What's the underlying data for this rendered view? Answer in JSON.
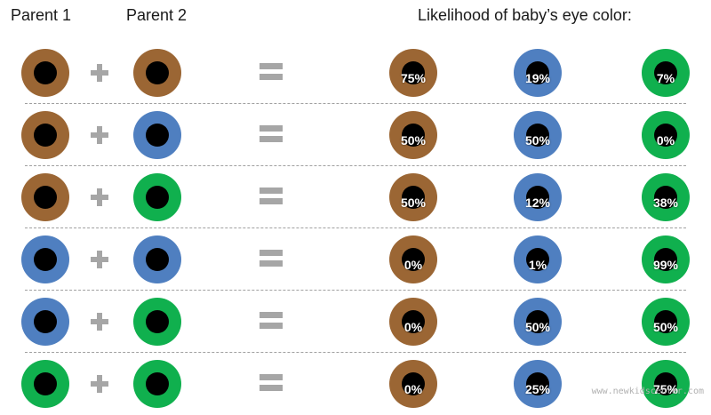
{
  "headers": {
    "parent1": "Parent 1",
    "parent2": "Parent 2",
    "likelihood": "Likelihood of baby’s eye color:"
  },
  "colors": {
    "brown": "#9b6634",
    "blue": "#4f7fc0",
    "green": "#10b04e",
    "operator": "#a6a6a6",
    "divider": "#a0a0a0"
  },
  "outcome_order": [
    "brown",
    "blue",
    "green"
  ],
  "rows": [
    {
      "parent1": "brown",
      "parent2": "brown",
      "outcomes": {
        "brown": "75%",
        "blue": "19%",
        "green": "7%"
      }
    },
    {
      "parent1": "brown",
      "parent2": "blue",
      "outcomes": {
        "brown": "50%",
        "blue": "50%",
        "green": "0%"
      }
    },
    {
      "parent1": "brown",
      "parent2": "green",
      "outcomes": {
        "brown": "50%",
        "blue": "12%",
        "green": "38%"
      }
    },
    {
      "parent1": "blue",
      "parent2": "blue",
      "outcomes": {
        "brown": "0%",
        "blue": "1%",
        "green": "99%"
      }
    },
    {
      "parent1": "blue",
      "parent2": "green",
      "outcomes": {
        "brown": "0%",
        "blue": "50%",
        "green": "50%"
      }
    },
    {
      "parent1": "green",
      "parent2": "green",
      "outcomes": {
        "brown": "0%",
        "blue": "25%",
        "green": "75%"
      }
    }
  ],
  "watermark": "www.newkidscenter.com"
}
